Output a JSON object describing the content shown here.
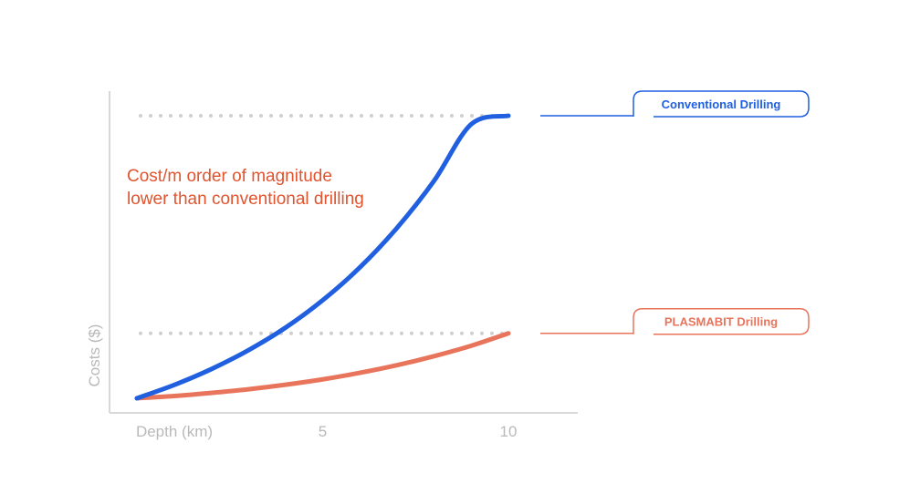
{
  "chart_data": {
    "type": "line",
    "ylabel": "Costs ($)",
    "xlabel": "Depth (km)",
    "xticks": [
      "5",
      "10"
    ],
    "xlim": [
      0,
      10
    ],
    "ylim": [
      0,
      1
    ],
    "grid": "dotted reference lines at each series' end value",
    "annotation": [
      "Cost/m order of magnitude",
      "lower than conventional drilling"
    ],
    "series": [
      {
        "name": "Conventional Drilling",
        "color": "#1f5fe0",
        "x": [
          0,
          1,
          2,
          3,
          4,
          5,
          6,
          7,
          8,
          9,
          10
        ],
        "y": [
          0.0,
          0.047,
          0.103,
          0.17,
          0.25,
          0.347,
          0.463,
          0.603,
          0.77,
          0.97,
          1.0
        ]
      },
      {
        "name": "PLASMABIT Drilling",
        "color": "#e8745c",
        "x": [
          0,
          1,
          2,
          3,
          4,
          5,
          6,
          7,
          8,
          9,
          10
        ],
        "y": [
          0.0,
          0.008,
          0.019,
          0.032,
          0.048,
          0.067,
          0.09,
          0.117,
          0.149,
          0.186,
          0.23
        ]
      }
    ]
  }
}
